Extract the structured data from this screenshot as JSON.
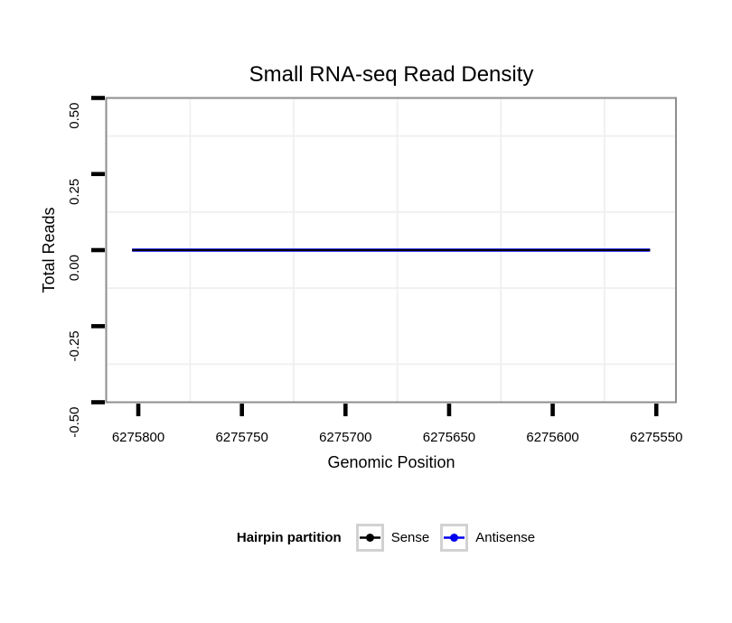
{
  "chart_data": {
    "type": "line",
    "title": "Small RNA-seq Read Density",
    "xlabel": "Genomic Position",
    "ylabel": "Total Reads",
    "x_axis": {
      "reversed": true,
      "ticks": [
        6275800,
        6275750,
        6275700,
        6275650,
        6275600,
        6275550
      ],
      "tick_labels": [
        "6275800",
        "6275750",
        "6275700",
        "6275650",
        "6275600",
        "6275550"
      ],
      "minor_ticks": [
        6275775,
        6275725,
        6275675,
        6275625,
        6275575
      ],
      "displayed_range": [
        6275815.5,
        6275540.5
      ]
    },
    "y_axis": {
      "ticks": [
        0.5,
        0.25,
        0,
        -0.25,
        -0.5
      ],
      "tick_labels": [
        "0.50",
        "0.25",
        "0.00",
        "-0.25",
        "-0.50"
      ],
      "minor_ticks": [
        0.375,
        0.125,
        -0.125,
        -0.375
      ],
      "range": [
        -0.5,
        0.5
      ]
    },
    "series": [
      {
        "name": "Sense",
        "color": "#000000",
        "y_value": 0,
        "x_start": 6275803,
        "x_end": 6275553
      },
      {
        "name": "Antisense",
        "color": "#0000ee",
        "y_value": 0,
        "x_start": 6275803,
        "x_end": 6275553
      }
    ],
    "legend": {
      "title": "Hairpin partition",
      "position": "bottom",
      "items": [
        {
          "label": "Sense",
          "color": "#000000"
        },
        {
          "label": "Antisense",
          "color": "#0000ee"
        }
      ]
    },
    "grid": {
      "minor_visible": true,
      "major_visible": false,
      "panel_background": "#ffffff"
    }
  },
  "colors": {
    "panel_border": "#8e8e8e",
    "minor_grid": "#f0f0f0",
    "tick": "#000000",
    "legend_key_border": "#d2d2d2",
    "text": "#000000"
  }
}
